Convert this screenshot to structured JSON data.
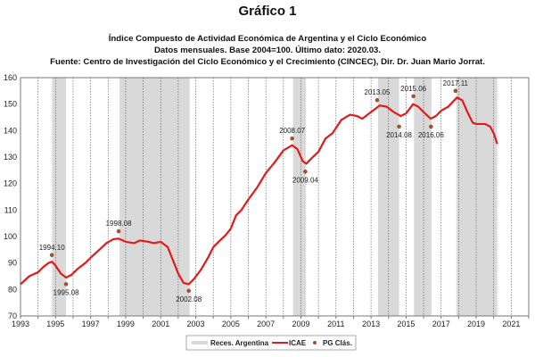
{
  "header": {
    "title": "Gráfico 1",
    "subtitle1": "Índice Compuesto de Actividad Económica de Argentina y el Ciclo Económico",
    "subtitle2": "Datos mensuales. Base 2004=100. Último dato: 2020.03.",
    "subtitle3": "Fuente: Centro de Investigación del Ciclo Económico y el Crecimiento (CINCEC), Dir. Dr. Juan Mario Jorrat."
  },
  "chart_data": {
    "type": "line",
    "title": "",
    "xlabel": "",
    "ylabel": "",
    "xlim": [
      1993,
      2022
    ],
    "ylim": [
      70,
      160
    ],
    "yticks": [
      70,
      80,
      90,
      100,
      110,
      120,
      130,
      140,
      150,
      160
    ],
    "xticks": [
      1993,
      1995,
      1997,
      1999,
      2001,
      2003,
      2005,
      2007,
      2009,
      2011,
      2013,
      2015,
      2017,
      2019,
      2021
    ],
    "grid": "vertical dashed lines each year",
    "colors": {
      "icae": "#e31a1c",
      "recession": "#d9d9d9",
      "pg": "#a0522d"
    },
    "legend": {
      "position": "bottom",
      "items": [
        "Reces. Argentina",
        "ICAE",
        "PG Clás."
      ]
    },
    "recessions": [
      [
        1994.8,
        1995.6
      ],
      [
        1998.65,
        2002.65
      ],
      [
        2008.55,
        2009.28
      ],
      [
        2013.4,
        2014.6
      ],
      [
        2015.45,
        2016.45
      ],
      [
        2017.87,
        2020.2
      ]
    ],
    "series": [
      {
        "name": "ICAE",
        "x": [
          1993.0,
          1993.5,
          1994.0,
          1994.3,
          1994.6,
          1994.8,
          1995.0,
          1995.3,
          1995.6,
          1995.9,
          1996.3,
          1996.7,
          1997.0,
          1997.5,
          1997.9,
          1998.3,
          1998.6,
          1999.0,
          1999.5,
          1999.8,
          2000.3,
          2000.6,
          2001.0,
          2001.4,
          2001.7,
          2002.0,
          2002.3,
          2002.6,
          2002.9,
          2003.3,
          2003.7,
          2004.0,
          2004.3,
          2004.7,
          2005.0,
          2005.3,
          2005.6,
          2006.0,
          2006.5,
          2007.0,
          2007.5,
          2008.0,
          2008.5,
          2008.8,
          2009.1,
          2009.3,
          2009.6,
          2010.0,
          2010.4,
          2010.8,
          2011.0,
          2011.3,
          2011.8,
          2012.2,
          2012.5,
          2012.8,
          2013.2,
          2013.5,
          2013.9,
          2014.3,
          2014.7,
          2015.0,
          2015.4,
          2015.7,
          2016.0,
          2016.4,
          2016.7,
          2017.0,
          2017.4,
          2017.9,
          2018.2,
          2018.5,
          2018.8,
          2019.0,
          2019.5,
          2019.8,
          2020.0,
          2020.2
        ],
        "y": [
          82,
          85,
          86.5,
          88.5,
          90,
          90.5,
          89,
          86,
          84.5,
          85.5,
          88,
          90,
          92,
          95,
          97.5,
          99,
          99.2,
          98,
          97.5,
          98.5,
          98,
          97.5,
          98,
          96,
          91,
          86,
          82.5,
          82,
          84,
          87.5,
          92,
          96,
          98,
          100.5,
          103,
          108,
          110,
          114,
          118.5,
          124,
          128,
          132.5,
          134.5,
          133,
          128.5,
          127.5,
          129.5,
          132,
          137,
          139,
          141,
          144,
          146,
          145.5,
          144.5,
          146,
          148,
          149.5,
          149,
          147,
          145.5,
          146.5,
          150,
          149,
          147,
          144.5,
          145.5,
          147.5,
          149,
          152.5,
          151.5,
          147,
          143,
          142.5,
          142.5,
          141.5,
          139,
          135
        ]
      }
    ],
    "turning_points": [
      {
        "label": "1994.10",
        "x": 1994.79,
        "y": 93,
        "pos": "above"
      },
      {
        "label": "1995.08",
        "x": 1995.6,
        "y": 82,
        "pos": "below"
      },
      {
        "label": "1998.08",
        "x": 1998.6,
        "y": 102,
        "pos": "above"
      },
      {
        "label": "2002.08",
        "x": 2002.6,
        "y": 79.5,
        "pos": "below"
      },
      {
        "label": "2008.07",
        "x": 2008.5,
        "y": 137,
        "pos": "above"
      },
      {
        "label": "2009.04",
        "x": 2009.25,
        "y": 124.5,
        "pos": "below"
      },
      {
        "label": "2013.05",
        "x": 2013.35,
        "y": 151.5,
        "pos": "above"
      },
      {
        "label": "2014.08",
        "x": 2014.6,
        "y": 141.5,
        "pos": "below"
      },
      {
        "label": "2015.06",
        "x": 2015.42,
        "y": 153,
        "pos": "above"
      },
      {
        "label": "2016.06",
        "x": 2016.42,
        "y": 141.5,
        "pos": "below"
      },
      {
        "label": "2017.11",
        "x": 2017.82,
        "y": 155,
        "pos": "above"
      }
    ]
  }
}
